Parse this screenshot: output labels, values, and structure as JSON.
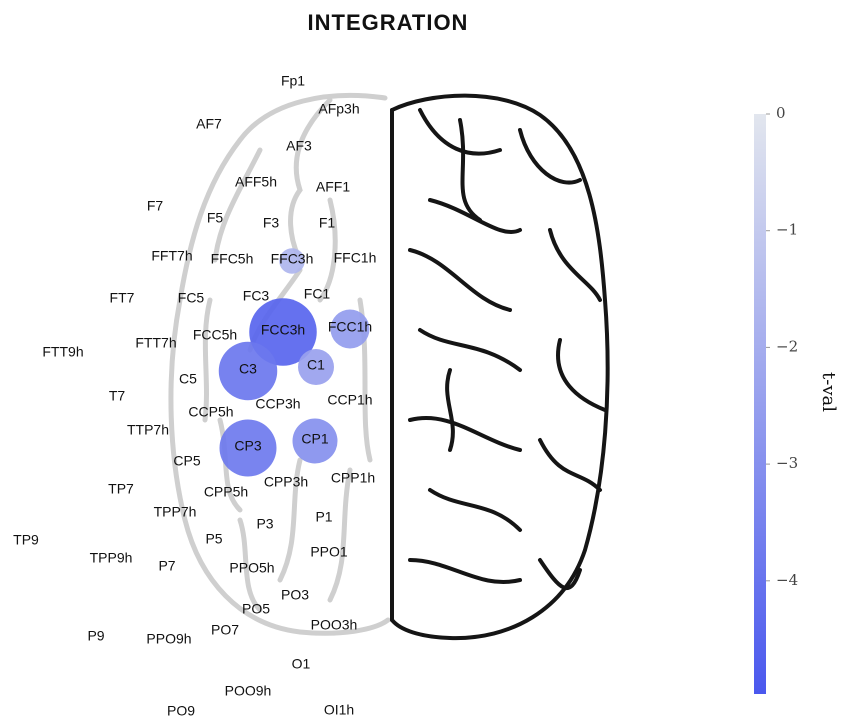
{
  "chart_data": {
    "type": "bubble",
    "title": "INTEGRATION",
    "electrodes": [
      "Fp1",
      "AFp3h",
      "AF7",
      "AF3",
      "AFF5h",
      "AFF1",
      "F7",
      "F5",
      "F3",
      "F1",
      "FFT7h",
      "FFC5h",
      "FFC3h",
      "FFC1h",
      "FT7",
      "FC5",
      "FC3",
      "FC1",
      "FCC5h",
      "FCC3h",
      "FCC1h",
      "FTT9h",
      "FTT7h",
      "C5",
      "C3",
      "C1",
      "T7",
      "CCP5h",
      "CCP3h",
      "CCP1h",
      "TTP7h",
      "CP3",
      "CP1",
      "CP5",
      "CPP5h",
      "CPP3h",
      "CPP1h",
      "TP7",
      "TPP7h",
      "P3",
      "P1",
      "TP9",
      "P5",
      "TPP9h",
      "P7",
      "PPO5h",
      "PPO1",
      "PO3",
      "PO5",
      "PO7",
      "POO3h",
      "P9",
      "PPO9h",
      "O1",
      "POO9h",
      "PO9",
      "OI1h"
    ],
    "values": [
      null,
      null,
      null,
      null,
      null,
      null,
      null,
      null,
      null,
      null,
      null,
      null,
      -1.7,
      null,
      null,
      null,
      null,
      null,
      null,
      -4.5,
      -2.6,
      null,
      null,
      null,
      -3.9,
      -2.4,
      null,
      null,
      null,
      null,
      null,
      -3.8,
      -3.0,
      null,
      null,
      null,
      null,
      null,
      null,
      null,
      null,
      null,
      null,
      null,
      null,
      null,
      null,
      null,
      null,
      null,
      null,
      null,
      null,
      null,
      null,
      null,
      null
    ],
    "colorbar": {
      "label": "t-val",
      "lim": [
        -4.97,
        0
      ],
      "ticks": [
        {
          "value": 0,
          "label": "0"
        },
        {
          "value": -1,
          "label": "−1"
        },
        {
          "value": -2,
          "label": "−2"
        },
        {
          "value": -3,
          "label": "−3"
        },
        {
          "value": -4,
          "label": "−4"
        }
      ],
      "colors": [
        "#4a58ee",
        "#e2e6ee"
      ]
    }
  }
}
